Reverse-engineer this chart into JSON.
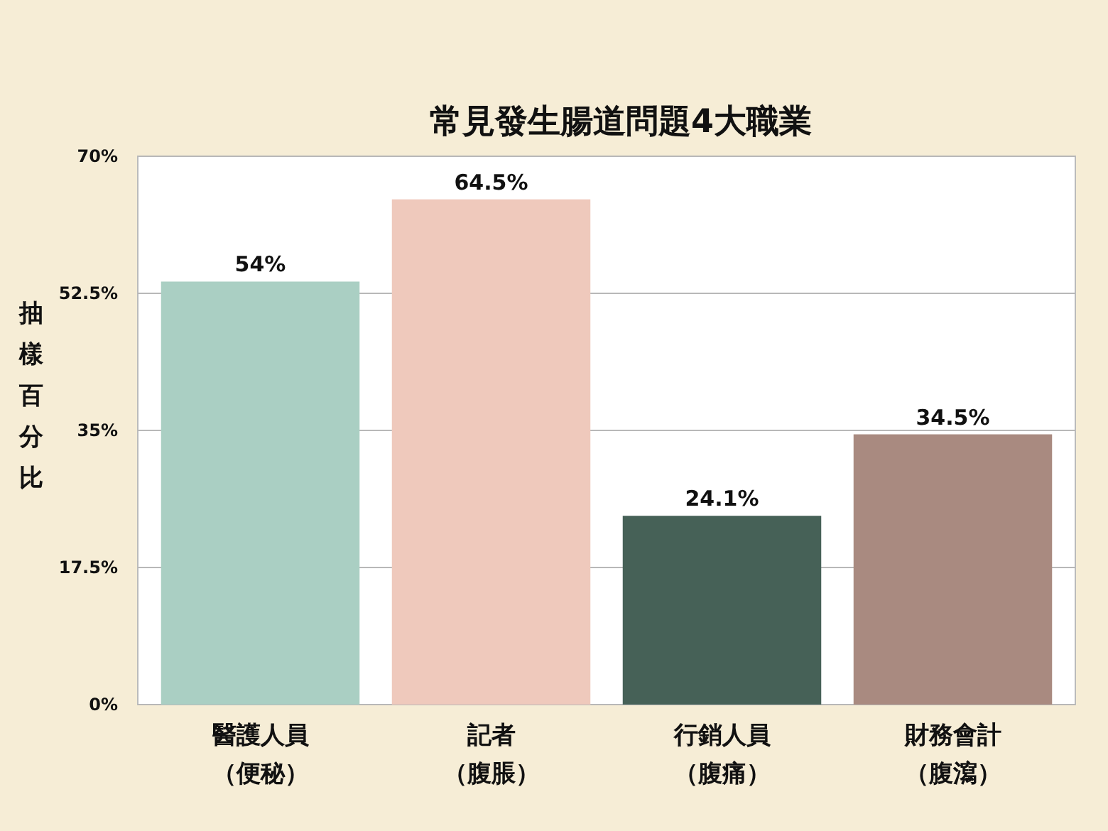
{
  "chart_data": {
    "type": "bar",
    "title": "常見發生腸道問題4大職業",
    "ylabel": "抽樣百分比",
    "categories": [
      "醫護人員（便秘）",
      "記者（腹脹）",
      "行銷人員（腹痛）",
      "財務會計（腹瀉）"
    ],
    "values": [
      54,
      64.5,
      24.1,
      34.5
    ],
    "colors": [
      "#aacfc3",
      "#efc9bc",
      "#466157",
      "#a98a80"
    ],
    "value_labels": [
      "54%",
      "64.5%",
      "24.1%",
      "34.5%"
    ],
    "ylim": [
      0,
      70
    ],
    "yticks": [
      {
        "value": 0,
        "label": "0%"
      },
      {
        "value": 17.5,
        "label": "17.5%"
      },
      {
        "value": 35,
        "label": "35%"
      },
      {
        "value": 52.5,
        "label": "52.5%"
      },
      {
        "value": 70,
        "label": "70%"
      }
    ],
    "grid": "y"
  }
}
